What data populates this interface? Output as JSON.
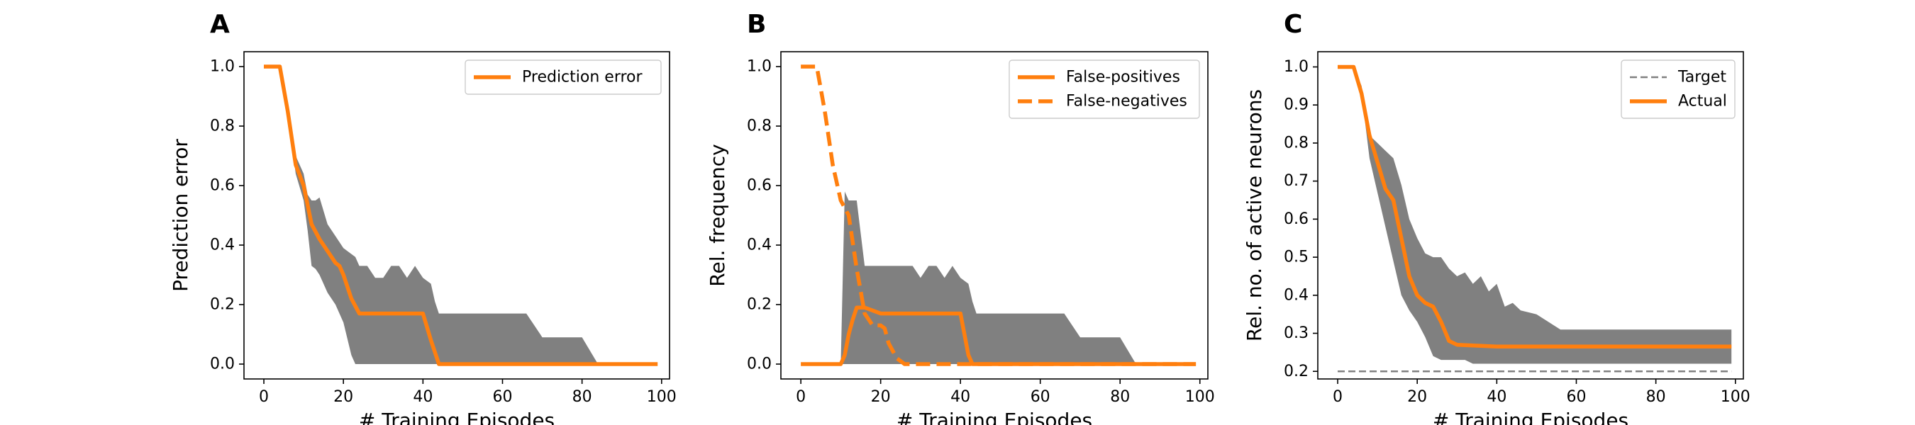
{
  "colors": {
    "series": "#ff7f0e",
    "band": "#808080",
    "target": "#808080",
    "axes": "#000000"
  },
  "chart_data": [
    {
      "type": "line",
      "panel_label": "A",
      "xlabel": "# Training Episodes",
      "ylabel": "Prediction error",
      "xlim": [
        -5,
        102
      ],
      "ylim": [
        -0.05,
        1.05
      ],
      "xticks": [
        0,
        20,
        40,
        60,
        80,
        100
      ],
      "yticks": [
        0.0,
        0.2,
        0.4,
        0.6,
        0.8,
        1.0
      ],
      "ytick_labels": [
        "0.0",
        "0.2",
        "0.4",
        "0.6",
        "0.8",
        "1.0"
      ],
      "legend": {
        "position": "top-right"
      },
      "series": [
        {
          "name": "Prediction error",
          "style": "solid",
          "x": [
            0,
            4,
            6,
            8,
            10,
            12,
            14,
            16,
            18,
            19,
            20,
            22,
            24,
            30,
            40,
            42,
            44,
            60,
            80,
            99
          ],
          "y": [
            1.0,
            1.0,
            0.85,
            0.67,
            0.6,
            0.47,
            0.42,
            0.38,
            0.34,
            0.33,
            0.3,
            0.22,
            0.17,
            0.17,
            0.17,
            0.08,
            0.0,
            0.0,
            0.0,
            0.0
          ]
        }
      ],
      "band": {
        "x": [
          0,
          4,
          6,
          8,
          10,
          11,
          12,
          13,
          14,
          16,
          18,
          20,
          22,
          23,
          24,
          26,
          28,
          30,
          32,
          34,
          36,
          38,
          40,
          42,
          43,
          44,
          46,
          60,
          66,
          70,
          80,
          84,
          99
        ],
        "upper": [
          1.0,
          1.0,
          0.85,
          0.7,
          0.64,
          0.57,
          0.55,
          0.55,
          0.56,
          0.47,
          0.43,
          0.39,
          0.37,
          0.36,
          0.33,
          0.33,
          0.29,
          0.29,
          0.33,
          0.33,
          0.29,
          0.33,
          0.29,
          0.27,
          0.21,
          0.17,
          0.17,
          0.17,
          0.17,
          0.09,
          0.09,
          0.0,
          0.0
        ],
        "lower": [
          1.0,
          1.0,
          0.85,
          0.64,
          0.55,
          0.45,
          0.33,
          0.32,
          0.3,
          0.24,
          0.2,
          0.14,
          0.03,
          0.0,
          0.0,
          0.0,
          0.0,
          0.0,
          0.0,
          0.0,
          0.0,
          0.0,
          0.0,
          0.0,
          0.0,
          0.0,
          0.0,
          0.0,
          0.0,
          0.0,
          0.0,
          0.0,
          0.0
        ]
      }
    },
    {
      "type": "line",
      "panel_label": "B",
      "xlabel": "# Training Episodes",
      "ylabel": "Rel. frequency",
      "xlim": [
        -5,
        102
      ],
      "ylim": [
        -0.05,
        1.05
      ],
      "xticks": [
        0,
        20,
        40,
        60,
        80,
        100
      ],
      "yticks": [
        0.0,
        0.2,
        0.4,
        0.6,
        0.8,
        1.0
      ],
      "ytick_labels": [
        "0.0",
        "0.2",
        "0.4",
        "0.6",
        "0.8",
        "1.0"
      ],
      "legend": {
        "position": "top-right"
      },
      "series": [
        {
          "name": "False-positives",
          "style": "solid",
          "x": [
            0,
            10,
            11,
            12,
            13,
            14,
            15,
            16,
            20,
            30,
            40,
            41,
            42,
            43,
            60,
            80,
            99
          ],
          "y": [
            0.0,
            0.0,
            0.03,
            0.1,
            0.15,
            0.19,
            0.19,
            0.19,
            0.17,
            0.17,
            0.17,
            0.1,
            0.03,
            0.0,
            0.0,
            0.0,
            0.0
          ]
        },
        {
          "name": "False-negatives",
          "style": "dashed",
          "x": [
            0,
            4,
            6,
            8,
            10,
            12,
            14,
            16,
            18,
            20,
            21,
            22,
            24,
            26,
            30,
            40,
            60,
            80,
            99
          ],
          "y": [
            1.0,
            1.0,
            0.85,
            0.67,
            0.55,
            0.5,
            0.32,
            0.17,
            0.13,
            0.13,
            0.12,
            0.07,
            0.02,
            0.0,
            0.0,
            0.0,
            0.0,
            0.0,
            0.0
          ]
        }
      ],
      "band": {
        "x": [
          0,
          10,
          11,
          12,
          13,
          14,
          16,
          20,
          28,
          30,
          32,
          34,
          36,
          38,
          40,
          42,
          43,
          44,
          46,
          60,
          66,
          70,
          80,
          84,
          99
        ],
        "upper": [
          0.0,
          0.0,
          0.58,
          0.55,
          0.55,
          0.55,
          0.33,
          0.33,
          0.33,
          0.29,
          0.33,
          0.33,
          0.29,
          0.33,
          0.29,
          0.27,
          0.21,
          0.17,
          0.17,
          0.17,
          0.17,
          0.09,
          0.09,
          0.0,
          0.0
        ],
        "lower": [
          0.0,
          0.0,
          0.0,
          0.0,
          0.0,
          0.0,
          0.0,
          0.0,
          0.0,
          0.0,
          0.0,
          0.0,
          0.0,
          0.0,
          0.0,
          0.0,
          0.0,
          0.0,
          0.0,
          0.0,
          0.0,
          0.0,
          0.0,
          0.0,
          0.0
        ]
      }
    },
    {
      "type": "line",
      "panel_label": "C",
      "xlabel": "# Training Episodes",
      "ylabel": "Rel. no. of active neurons",
      "xlim": [
        -5,
        102
      ],
      "ylim": [
        0.18,
        1.04
      ],
      "xticks": [
        0,
        20,
        40,
        60,
        80,
        100
      ],
      "yticks": [
        0.2,
        0.3,
        0.4,
        0.5,
        0.6,
        0.7,
        0.8,
        0.9,
        1.0
      ],
      "ytick_labels": [
        "0.2",
        "0.3",
        "0.4",
        "0.5",
        "0.6",
        "0.7",
        "0.8",
        "0.9",
        "1.0"
      ],
      "legend": {
        "position": "top-right"
      },
      "series": [
        {
          "name": "Target",
          "style": "thin-dashed",
          "x": [
            0,
            99
          ],
          "y": [
            0.2,
            0.2
          ]
        },
        {
          "name": "Actual",
          "style": "solid",
          "x": [
            0,
            4,
            6,
            8,
            10,
            12,
            14,
            16,
            18,
            20,
            22,
            24,
            26,
            28,
            30,
            40,
            60,
            80,
            99
          ],
          "y": [
            1.0,
            1.0,
            0.93,
            0.82,
            0.75,
            0.68,
            0.65,
            0.55,
            0.45,
            0.4,
            0.38,
            0.37,
            0.33,
            0.28,
            0.27,
            0.265,
            0.265,
            0.265,
            0.265
          ]
        }
      ],
      "band": {
        "x": [
          0,
          4,
          6,
          8,
          10,
          12,
          14,
          16,
          18,
          20,
          22,
          24,
          26,
          28,
          30,
          32,
          34,
          36,
          38,
          40,
          42,
          44,
          46,
          50,
          56,
          60,
          80,
          99
        ],
        "upper": [
          1.0,
          1.0,
          0.95,
          0.82,
          0.8,
          0.78,
          0.76,
          0.69,
          0.6,
          0.55,
          0.51,
          0.5,
          0.5,
          0.47,
          0.45,
          0.46,
          0.43,
          0.45,
          0.41,
          0.43,
          0.37,
          0.38,
          0.36,
          0.35,
          0.31,
          0.31,
          0.31,
          0.31
        ],
        "lower": [
          1.0,
          1.0,
          0.93,
          0.76,
          0.67,
          0.58,
          0.49,
          0.4,
          0.36,
          0.33,
          0.29,
          0.24,
          0.23,
          0.23,
          0.23,
          0.23,
          0.22,
          0.22,
          0.22,
          0.22,
          0.22,
          0.22,
          0.22,
          0.22,
          0.22,
          0.22,
          0.22,
          0.22
        ]
      }
    }
  ]
}
